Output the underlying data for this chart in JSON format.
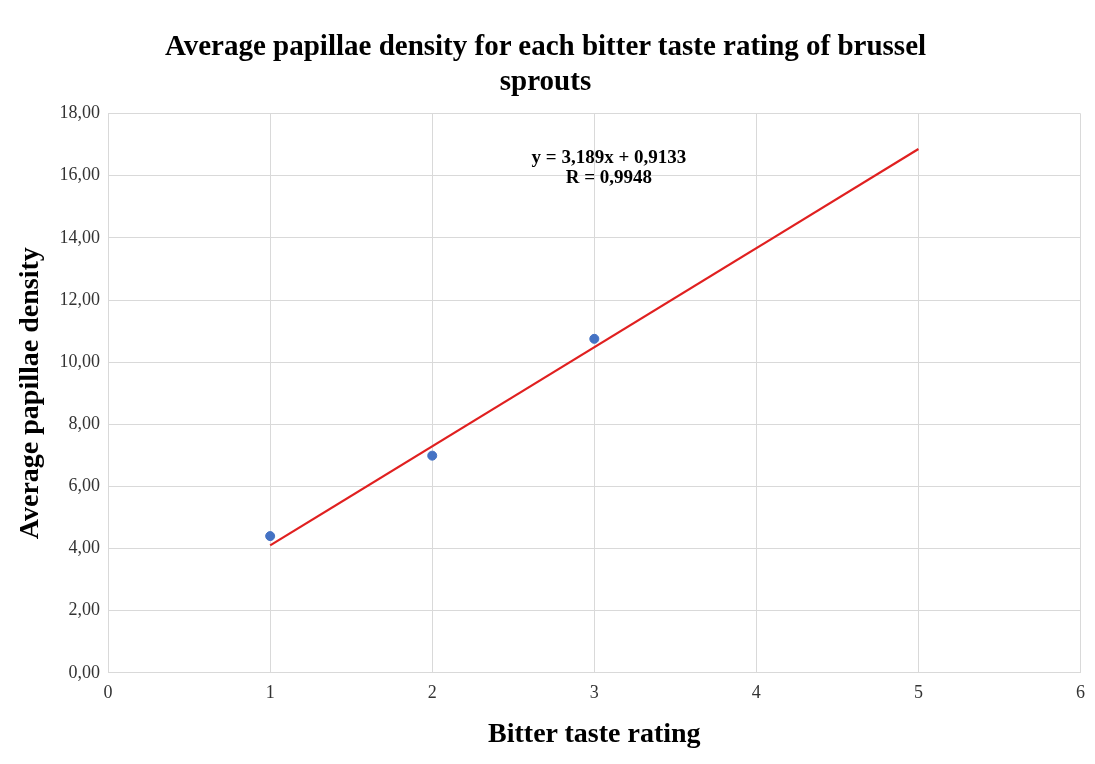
{
  "chart_data": {
    "type": "scatter",
    "title": "Average papillae density for each bitter taste rating of brussel sprouts",
    "xlabel": "Bitter taste rating",
    "ylabel": "Average papillae density",
    "series": [
      {
        "color": "#4472c4",
        "marker": "circle",
        "x": [
          1,
          2,
          3
        ],
        "values": [
          4.4,
          6.99,
          10.75
        ]
      },
      {
        "type": "line",
        "marker": "none",
        "color": "#e02020",
        "x": [
          1,
          5
        ],
        "values": [
          4.1,
          16.86
        ]
      }
    ],
    "xlim": [
      0,
      6
    ],
    "xticks": [
      0,
      1,
      2,
      3,
      4,
      5,
      6
    ],
    "ylim": [
      0,
      18
    ],
    "yticks": [
      {
        "value": 0,
        "label": "0,00"
      },
      {
        "value": 2,
        "label": "2,00"
      },
      {
        "value": 4,
        "label": "4,00"
      },
      {
        "value": 6,
        "label": "6,00"
      },
      {
        "value": 8,
        "label": "8,00"
      },
      {
        "value": 10,
        "label": "10,00"
      },
      {
        "value": 12,
        "label": "12,00"
      },
      {
        "value": 14,
        "label": "14,00"
      },
      {
        "value": 16,
        "label": "16,00"
      },
      {
        "value": 18,
        "label": "18,00"
      }
    ],
    "annotations": [
      "y = 3,189x + 0,9133",
      "R = 0,9948"
    ],
    "grid": true,
    "legend": false
  }
}
